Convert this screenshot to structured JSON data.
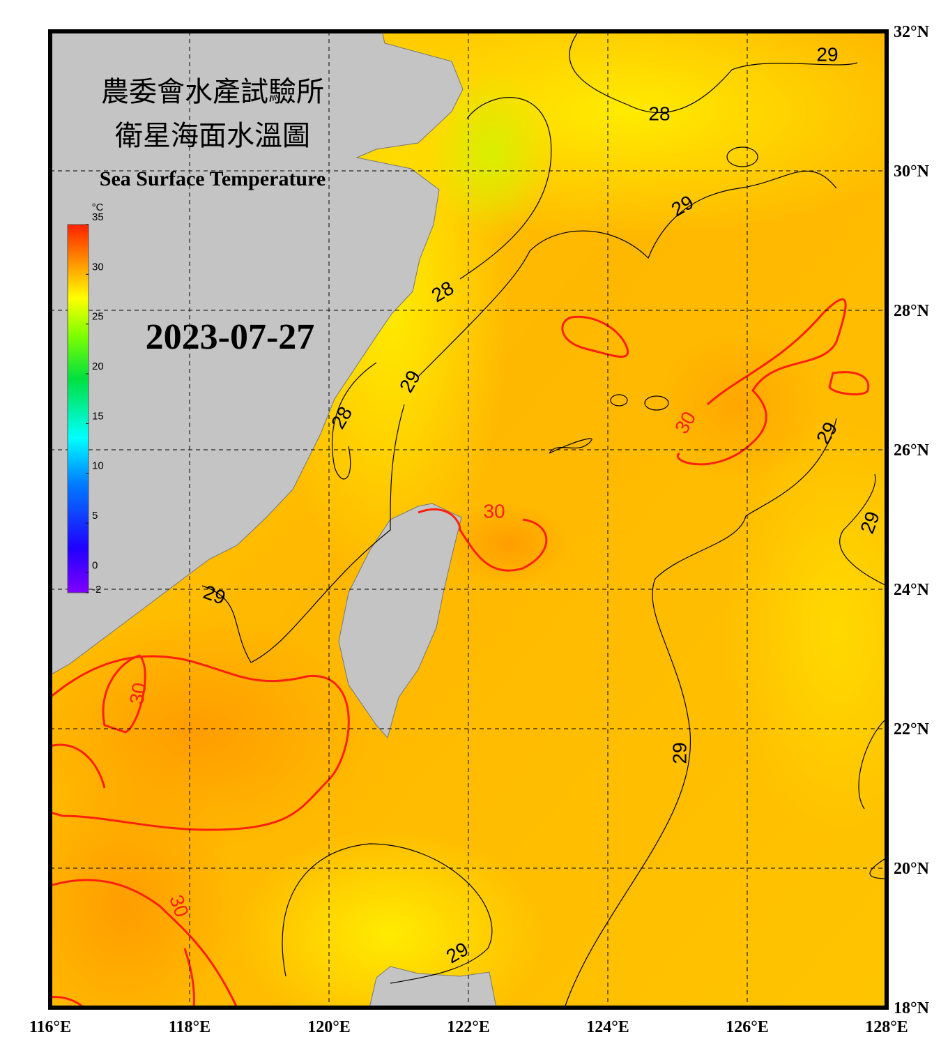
{
  "header": {
    "title_zh": "農委會水產試驗所",
    "subtitle_zh": "衛星海面水溫圖",
    "title_en": "Sea Surface Temperature"
  },
  "date": "2023-07-27",
  "colorbar": {
    "unit": "°C",
    "range": [
      -2,
      35
    ],
    "ticks": [
      35,
      30,
      25,
      20,
      15,
      10,
      5,
      0,
      -2
    ]
  },
  "lon_ticks": [
    {
      "value": 116,
      "label": "116°E"
    },
    {
      "value": 118,
      "label": "118°E"
    },
    {
      "value": 120,
      "label": "120°E"
    },
    {
      "value": 122,
      "label": "122°E"
    },
    {
      "value": 124,
      "label": "124°E"
    },
    {
      "value": 126,
      "label": "126°E"
    },
    {
      "value": 128,
      "label": "128°E"
    }
  ],
  "lat_ticks": [
    {
      "value": 32,
      "label": "32°N"
    },
    {
      "value": 30,
      "label": "30°N"
    },
    {
      "value": 28,
      "label": "28°N"
    },
    {
      "value": 26,
      "label": "26°N"
    },
    {
      "value": 24,
      "label": "24°N"
    },
    {
      "value": 22,
      "label": "22°N"
    },
    {
      "value": 20,
      "label": "20°N"
    },
    {
      "value": 18,
      "label": "18°N"
    }
  ],
  "contour_labels": [
    29,
    28,
    29,
    28,
    29,
    28,
    30,
    29,
    30,
    29,
    29,
    30,
    29,
    30,
    29
  ]
}
